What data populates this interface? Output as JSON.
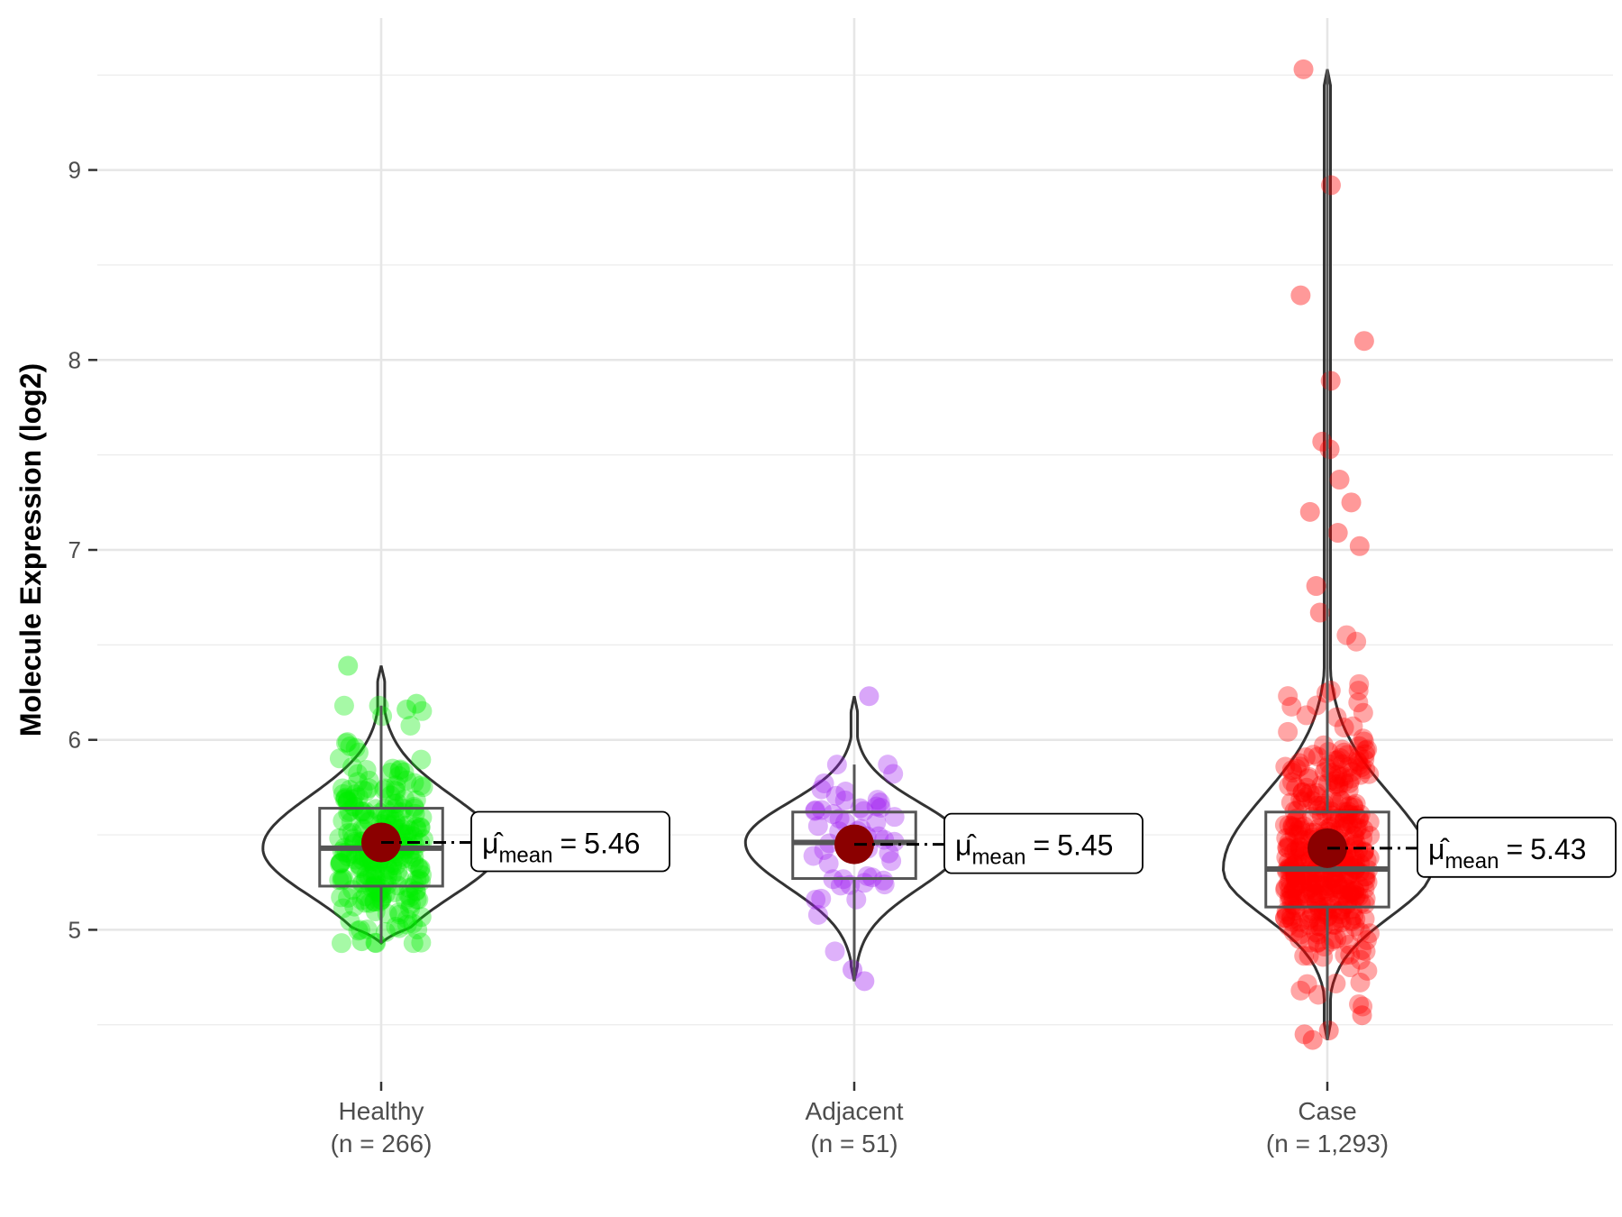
{
  "chart_data": {
    "type": "violin",
    "title": "",
    "xlabel": "",
    "ylabel": "Molecule Expression (log2)",
    "ylim": [
      4.2,
      9.8
    ],
    "yticks": [
      5,
      6,
      7,
      8,
      9
    ],
    "grid": true,
    "annotation_prefix": "μ̂",
    "annotation_sub": "mean",
    "annotation_eq": "=",
    "groups": [
      {
        "name": "Healthy",
        "n_label": "(n = 266)",
        "n": 266,
        "color": "#00ee00",
        "min": 4.93,
        "q1": 5.23,
        "median": 5.43,
        "q3": 5.64,
        "max": 6.18,
        "mean": 5.46,
        "mean_label": "5.46",
        "violin_min": 4.93,
        "violin_max": 6.39,
        "violin_max_width": 0.25,
        "outliers": [
          6.39,
          6.16,
          6.19,
          4.94
        ]
      },
      {
        "name": "Adjacent",
        "n_label": "(n = 51)",
        "n": 51,
        "color": "#a020f0",
        "min": 4.73,
        "q1": 5.27,
        "median": 5.46,
        "q3": 5.62,
        "max": 5.87,
        "mean": 5.45,
        "mean_label": "5.45",
        "violin_min": 4.73,
        "violin_max": 6.23,
        "violin_max_width": 0.23,
        "outliers": [
          6.23,
          4.73,
          4.79
        ]
      },
      {
        "name": "Case",
        "n_label": "(n = 1,293)",
        "n": 1293,
        "color": "#ff0000",
        "min": 4.42,
        "q1": 5.12,
        "median": 5.32,
        "q3": 5.62,
        "max": 9.53,
        "mean": 5.43,
        "mean_label": "5.43",
        "violin_min": 4.42,
        "violin_max": 9.53,
        "violin_max_width": 0.22,
        "outliers": [
          9.53,
          8.92,
          8.34,
          8.1,
          7.89,
          7.57,
          7.53,
          7.37,
          7.25,
          7.2,
          7.09,
          7.02,
          6.81,
          6.67,
          4.55,
          4.42,
          4.45,
          4.47
        ]
      }
    ]
  }
}
